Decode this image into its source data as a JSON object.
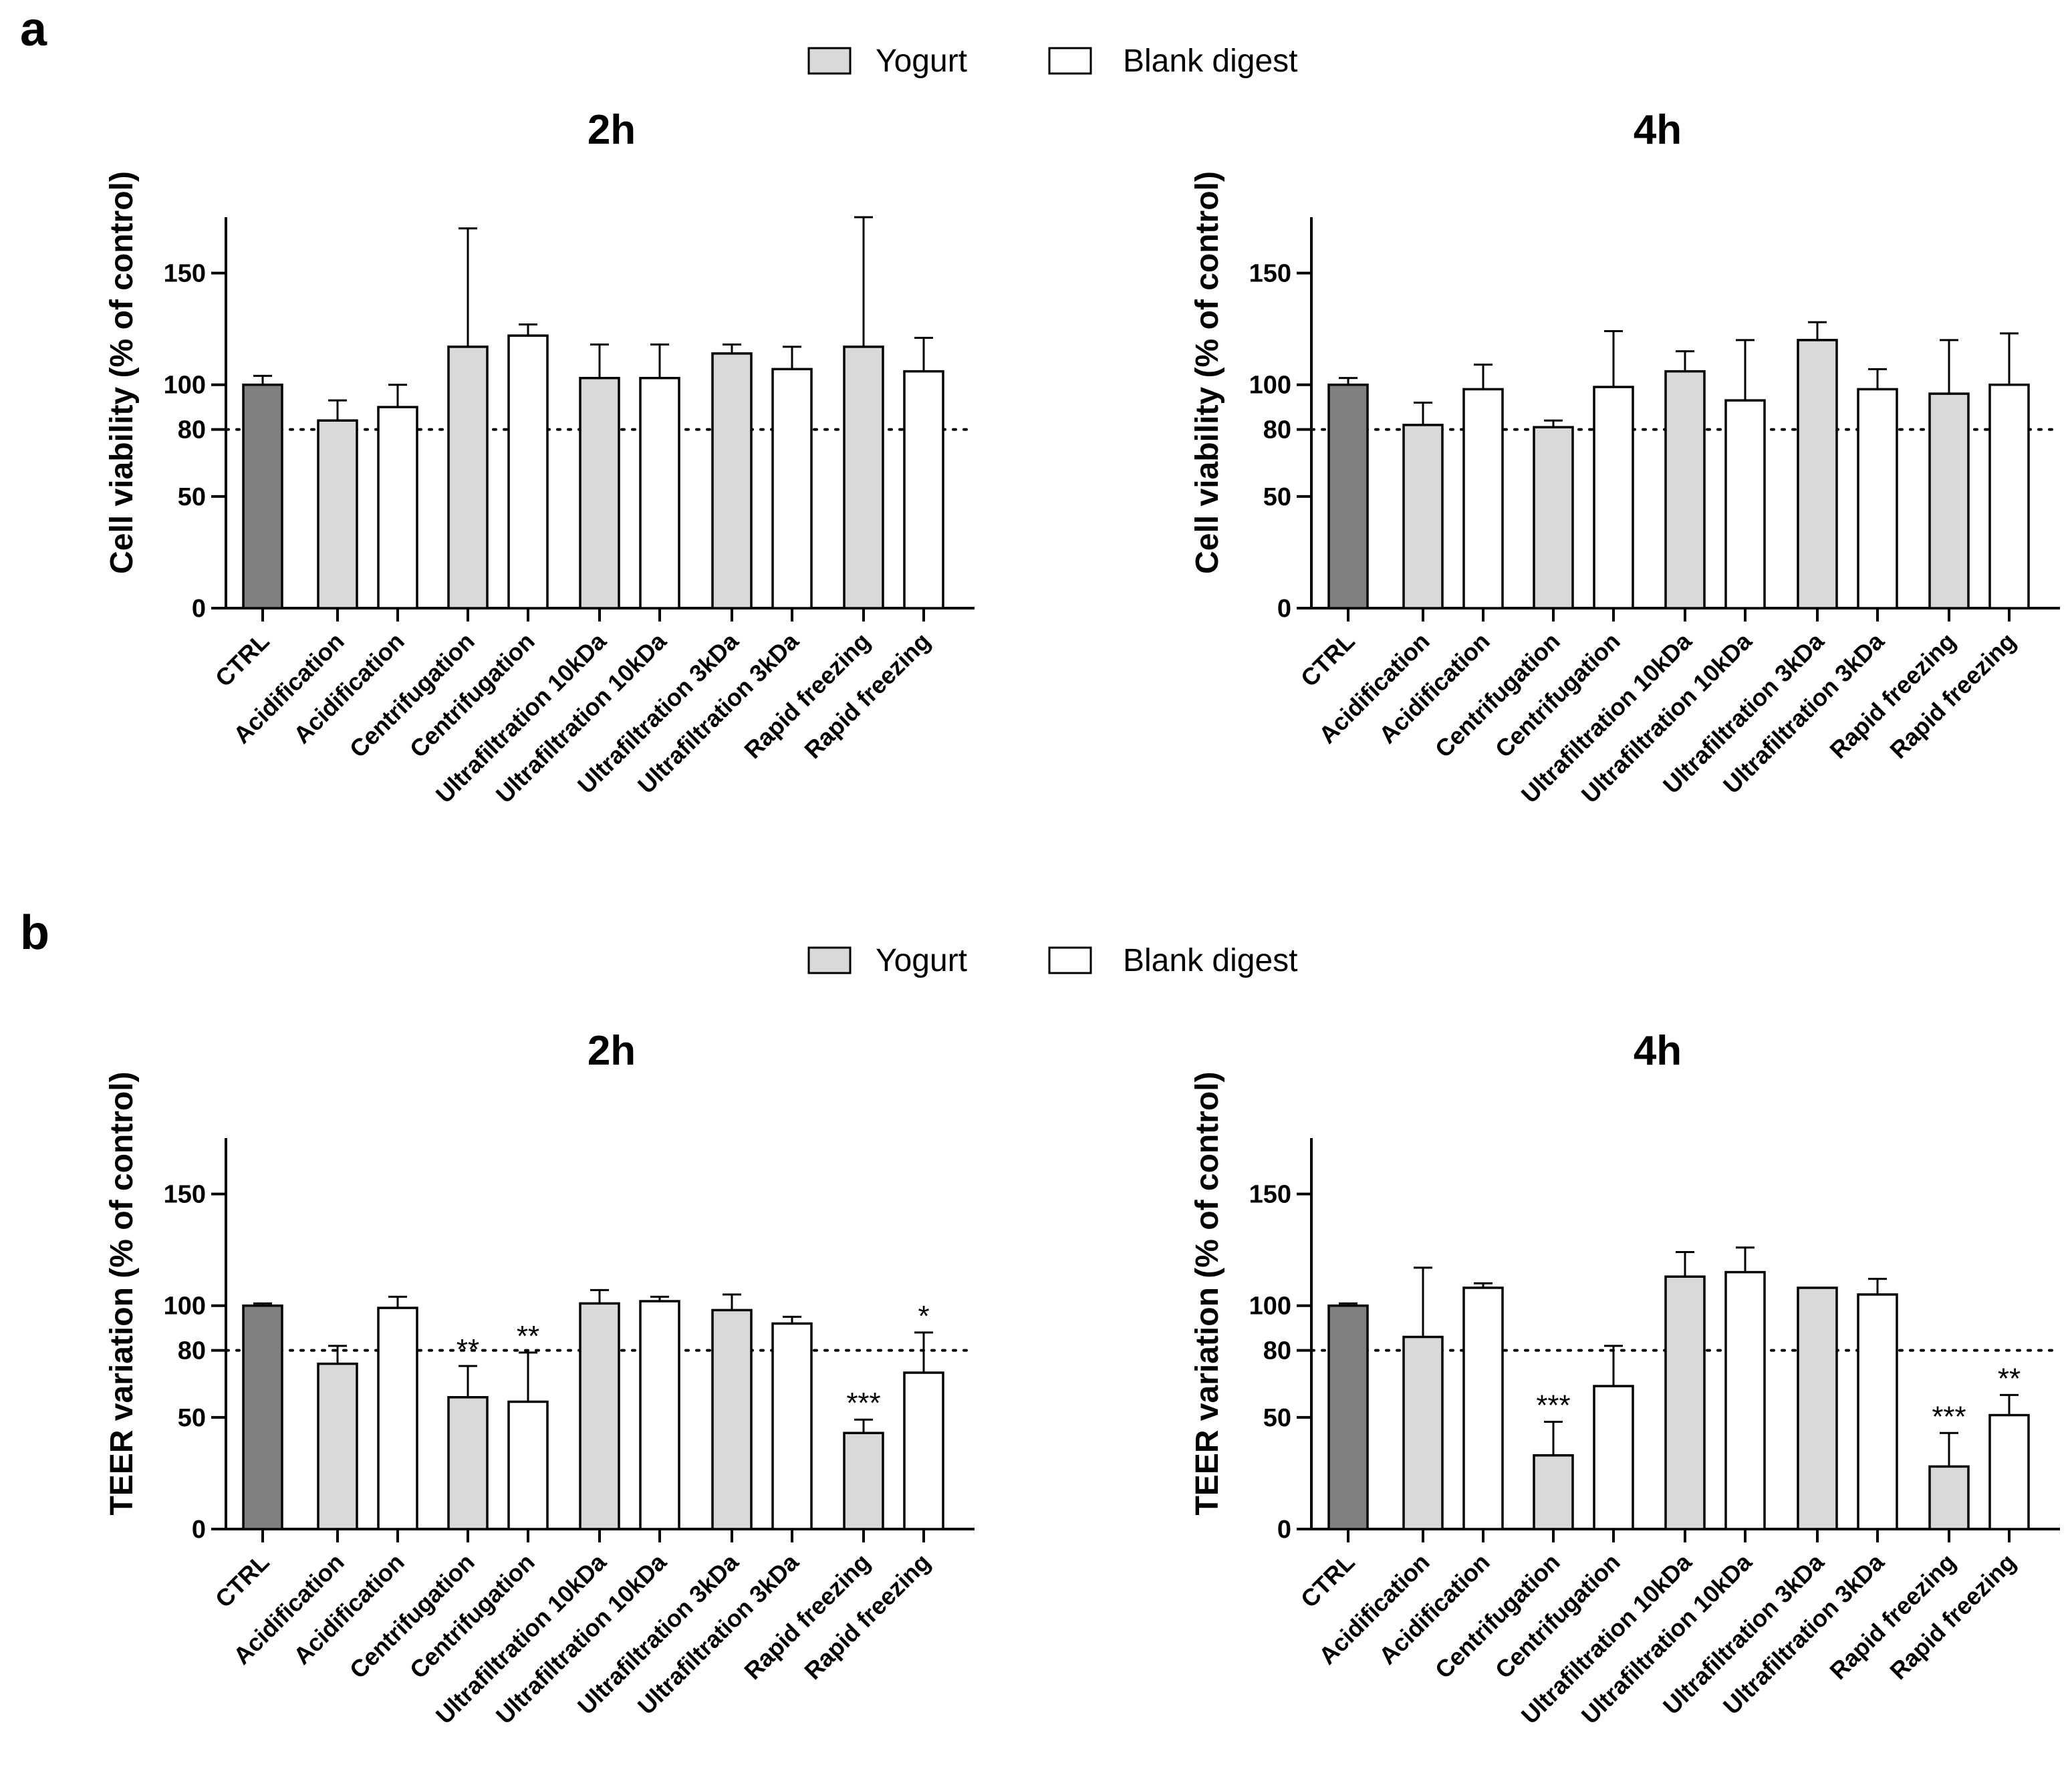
{
  "figure": {
    "panels": [
      {
        "letter": "a",
        "legend": [
          {
            "label": "Yogurt",
            "fill": "#d9d9d9"
          },
          {
            "label": "Blank digest",
            "fill": "#ffffff"
          }
        ]
      },
      {
        "letter": "b",
        "legend": [
          {
            "label": "Yogurt",
            "fill": "#d9d9d9"
          },
          {
            "label": "Blank digest",
            "fill": "#ffffff"
          }
        ]
      }
    ]
  },
  "colors": {
    "ctrl": "#808080",
    "yogurt": "#d9d9d9",
    "blank": "#ffffff",
    "stroke": "#000000"
  },
  "chart_data": [
    {
      "type": "bar",
      "panel": "a",
      "title": "2h",
      "ylabel": "Cell viability (% of control)",
      "ylim": [
        0,
        175
      ],
      "yticks": [
        0,
        50,
        80,
        100,
        150
      ],
      "reference_line": 80,
      "categories": [
        "CTRL",
        "Acidification",
        "Acidification",
        "Centrifugation",
        "Centrifugation",
        "Ultrafiltration 10kDa",
        "Ultrafiltration 10kDa",
        "Ultrafiltration 3kDa",
        "Ultrafiltration 3kDa",
        "Rapid freezing",
        "Rapid freezing"
      ],
      "groups": [
        "ctrl",
        "yogurt",
        "blank",
        "yogurt",
        "blank",
        "yogurt",
        "blank",
        "yogurt",
        "blank",
        "yogurt",
        "blank"
      ],
      "values": [
        100,
        84,
        90,
        117,
        122,
        103,
        103,
        114,
        107,
        117,
        106
      ],
      "errors": [
        4,
        9,
        10,
        53,
        5,
        15,
        15,
        4,
        10,
        58,
        15
      ],
      "significance": [
        "",
        "",
        "",
        "",
        "",
        "",
        "",
        "",
        "",
        "",
        ""
      ]
    },
    {
      "type": "bar",
      "panel": "a",
      "title": "4h",
      "ylabel": "Cell viability (% of control)",
      "ylim": [
        0,
        175
      ],
      "yticks": [
        0,
        50,
        80,
        100,
        150
      ],
      "reference_line": 80,
      "categories": [
        "CTRL",
        "Acidification",
        "Acidification",
        "Centrifugation",
        "Centrifugation",
        "Ultrafiltration 10kDa",
        "Ultrafiltration 10kDa",
        "Ultrafiltration 3kDa",
        "Ultrafiltration 3kDa",
        "Rapid freezing",
        "Rapid freezing"
      ],
      "groups": [
        "ctrl",
        "yogurt",
        "blank",
        "yogurt",
        "blank",
        "yogurt",
        "blank",
        "yogurt",
        "blank",
        "yogurt",
        "blank"
      ],
      "values": [
        100,
        82,
        98,
        81,
        99,
        106,
        93,
        120,
        98,
        96,
        100
      ],
      "errors": [
        3,
        10,
        11,
        3,
        25,
        9,
        27,
        8,
        9,
        24,
        23
      ],
      "significance": [
        "",
        "",
        "",
        "",
        "",
        "",
        "",
        "",
        "",
        "",
        ""
      ]
    },
    {
      "type": "bar",
      "panel": "b",
      "title": "2h",
      "ylabel": "TEER variation (% of control)",
      "ylim": [
        0,
        175
      ],
      "yticks": [
        0,
        50,
        80,
        100,
        150
      ],
      "reference_line": 80,
      "categories": [
        "CTRL",
        "Acidification",
        "Acidification",
        "Centrifugation",
        "Centrifugation",
        "Ultrafiltration 10kDa",
        "Ultrafiltration 10kDa",
        "Ultrafiltration 3kDa",
        "Ultrafiltration 3kDa",
        "Rapid freezing",
        "Rapid freezing"
      ],
      "groups": [
        "ctrl",
        "yogurt",
        "blank",
        "yogurt",
        "blank",
        "yogurt",
        "blank",
        "yogurt",
        "blank",
        "yogurt",
        "blank"
      ],
      "values": [
        100,
        74,
        99,
        59,
        57,
        101,
        102,
        98,
        92,
        43,
        70
      ],
      "errors": [
        1,
        8,
        5,
        14,
        22,
        6,
        2,
        7,
        3,
        6,
        18
      ],
      "significance": [
        "",
        "",
        "",
        "**",
        "**",
        "",
        "",
        "",
        "",
        "***",
        "*"
      ]
    },
    {
      "type": "bar",
      "panel": "b",
      "title": "4h",
      "ylabel": "TEER variation (% of control)",
      "ylim": [
        0,
        175
      ],
      "yticks": [
        0,
        50,
        80,
        100,
        150
      ],
      "reference_line": 80,
      "categories": [
        "CTRL",
        "Acidification",
        "Acidification",
        "Centrifugation",
        "Centrifugation",
        "Ultrafiltration 10kDa",
        "Ultrafiltration 10kDa",
        "Ultrafiltration 3kDa",
        "Ultrafiltration 3kDa",
        "Rapid freezing",
        "Rapid freezing"
      ],
      "groups": [
        "ctrl",
        "yogurt",
        "blank",
        "yogurt",
        "blank",
        "yogurt",
        "blank",
        "yogurt",
        "blank",
        "yogurt",
        "blank"
      ],
      "values": [
        100,
        86,
        108,
        33,
        64,
        113,
        115,
        108,
        105,
        28,
        51
      ],
      "errors": [
        1,
        31,
        2,
        15,
        18,
        11,
        11,
        0,
        7,
        15,
        9
      ],
      "significance": [
        "",
        "",
        "",
        "***",
        "",
        "",
        "",
        "",
        "",
        "***",
        "**"
      ]
    }
  ]
}
